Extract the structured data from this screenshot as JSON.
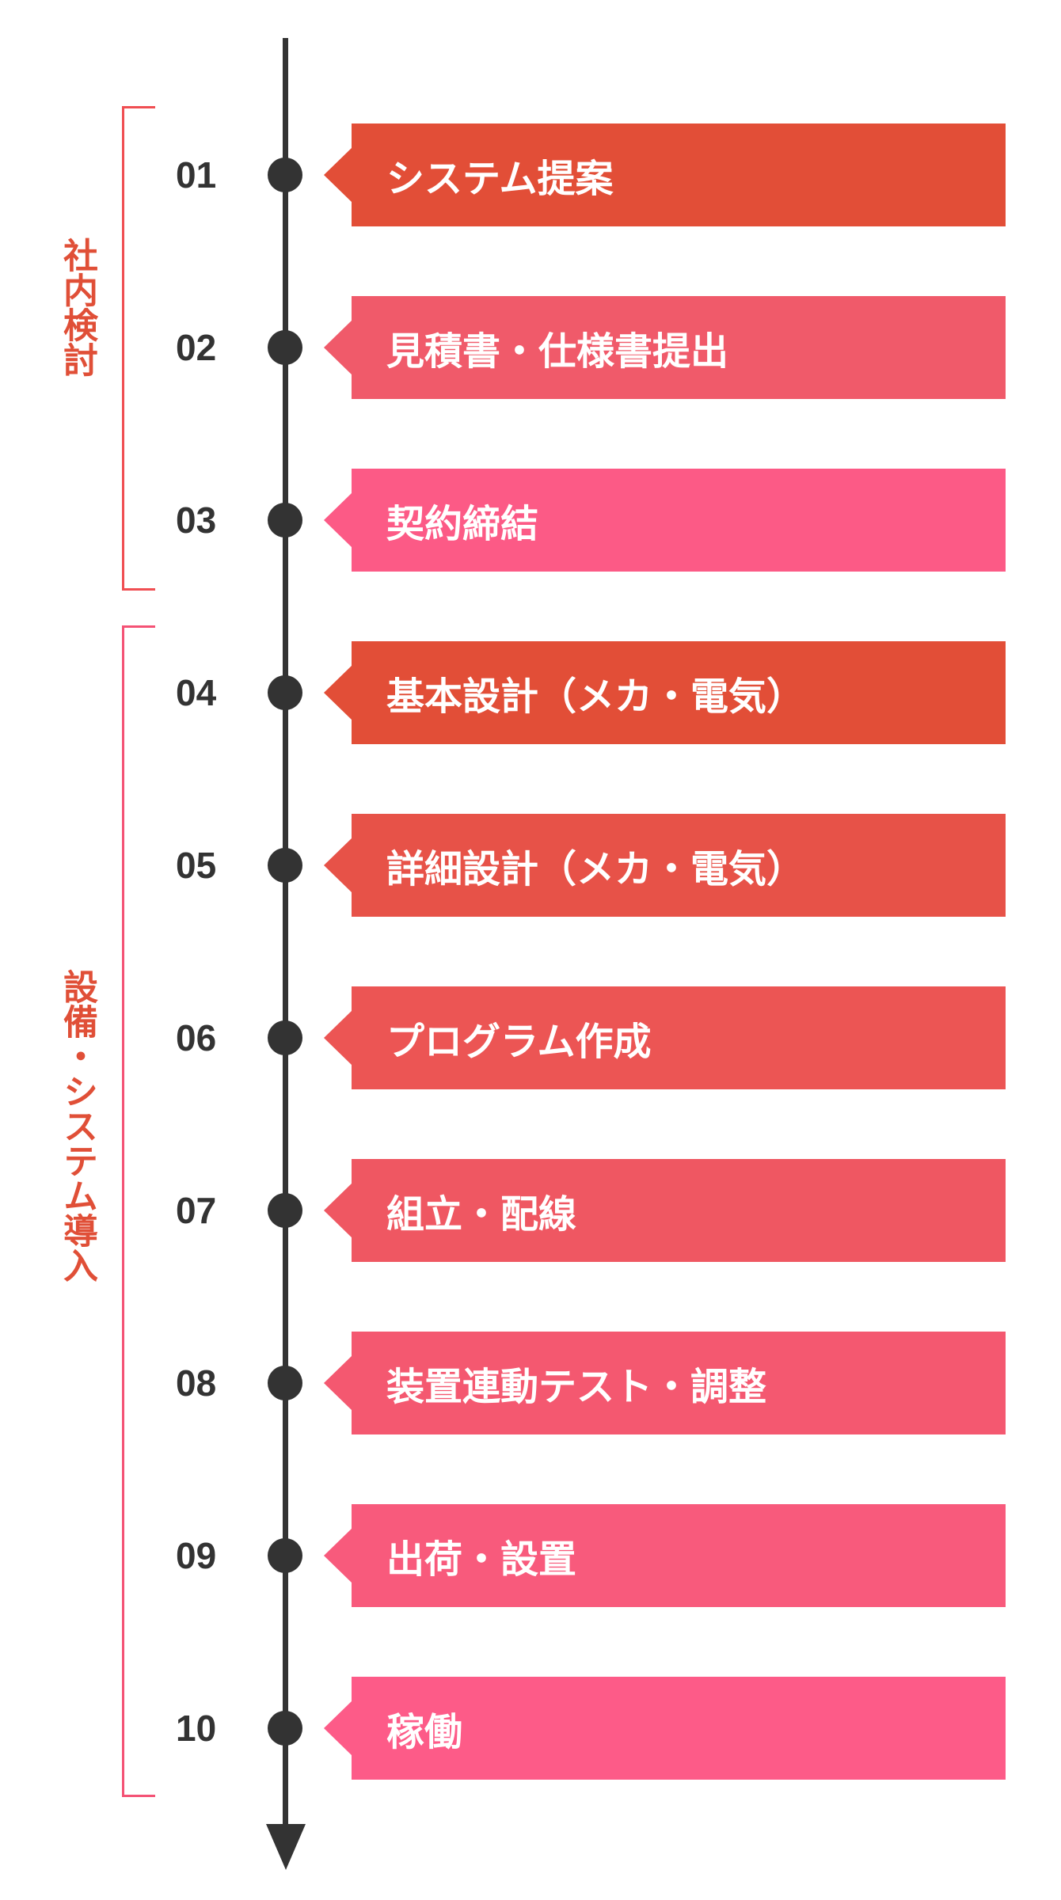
{
  "groups": [
    {
      "label": "社内検討",
      "color": "#e04f37"
    },
    {
      "label": "設備・システム導入",
      "color": "#e04f37"
    }
  ],
  "steps": [
    {
      "number": "01",
      "label": "システム提案",
      "color": "#e24e37"
    },
    {
      "number": "02",
      "label": "見積書・仕様書提出",
      "color": "#f05a6a"
    },
    {
      "number": "03",
      "label": "契約締結",
      "color": "#fc5a86"
    },
    {
      "number": "04",
      "label": "基本設計（メカ・電気）",
      "color": "#e24e37"
    },
    {
      "number": "05",
      "label": "詳細設計（メカ・電気）",
      "color": "#e75248"
    },
    {
      "number": "06",
      "label": "プログラム作成",
      "color": "#ec5554"
    },
    {
      "number": "07",
      "label": "組立・配線",
      "color": "#ef5762"
    },
    {
      "number": "08",
      "label": "装置連動テスト・調整",
      "color": "#f45870"
    },
    {
      "number": "09",
      "label": "出荷・設置",
      "color": "#f85a7c"
    },
    {
      "number": "10",
      "label": "稼働",
      "color": "#fd5b88"
    }
  ]
}
